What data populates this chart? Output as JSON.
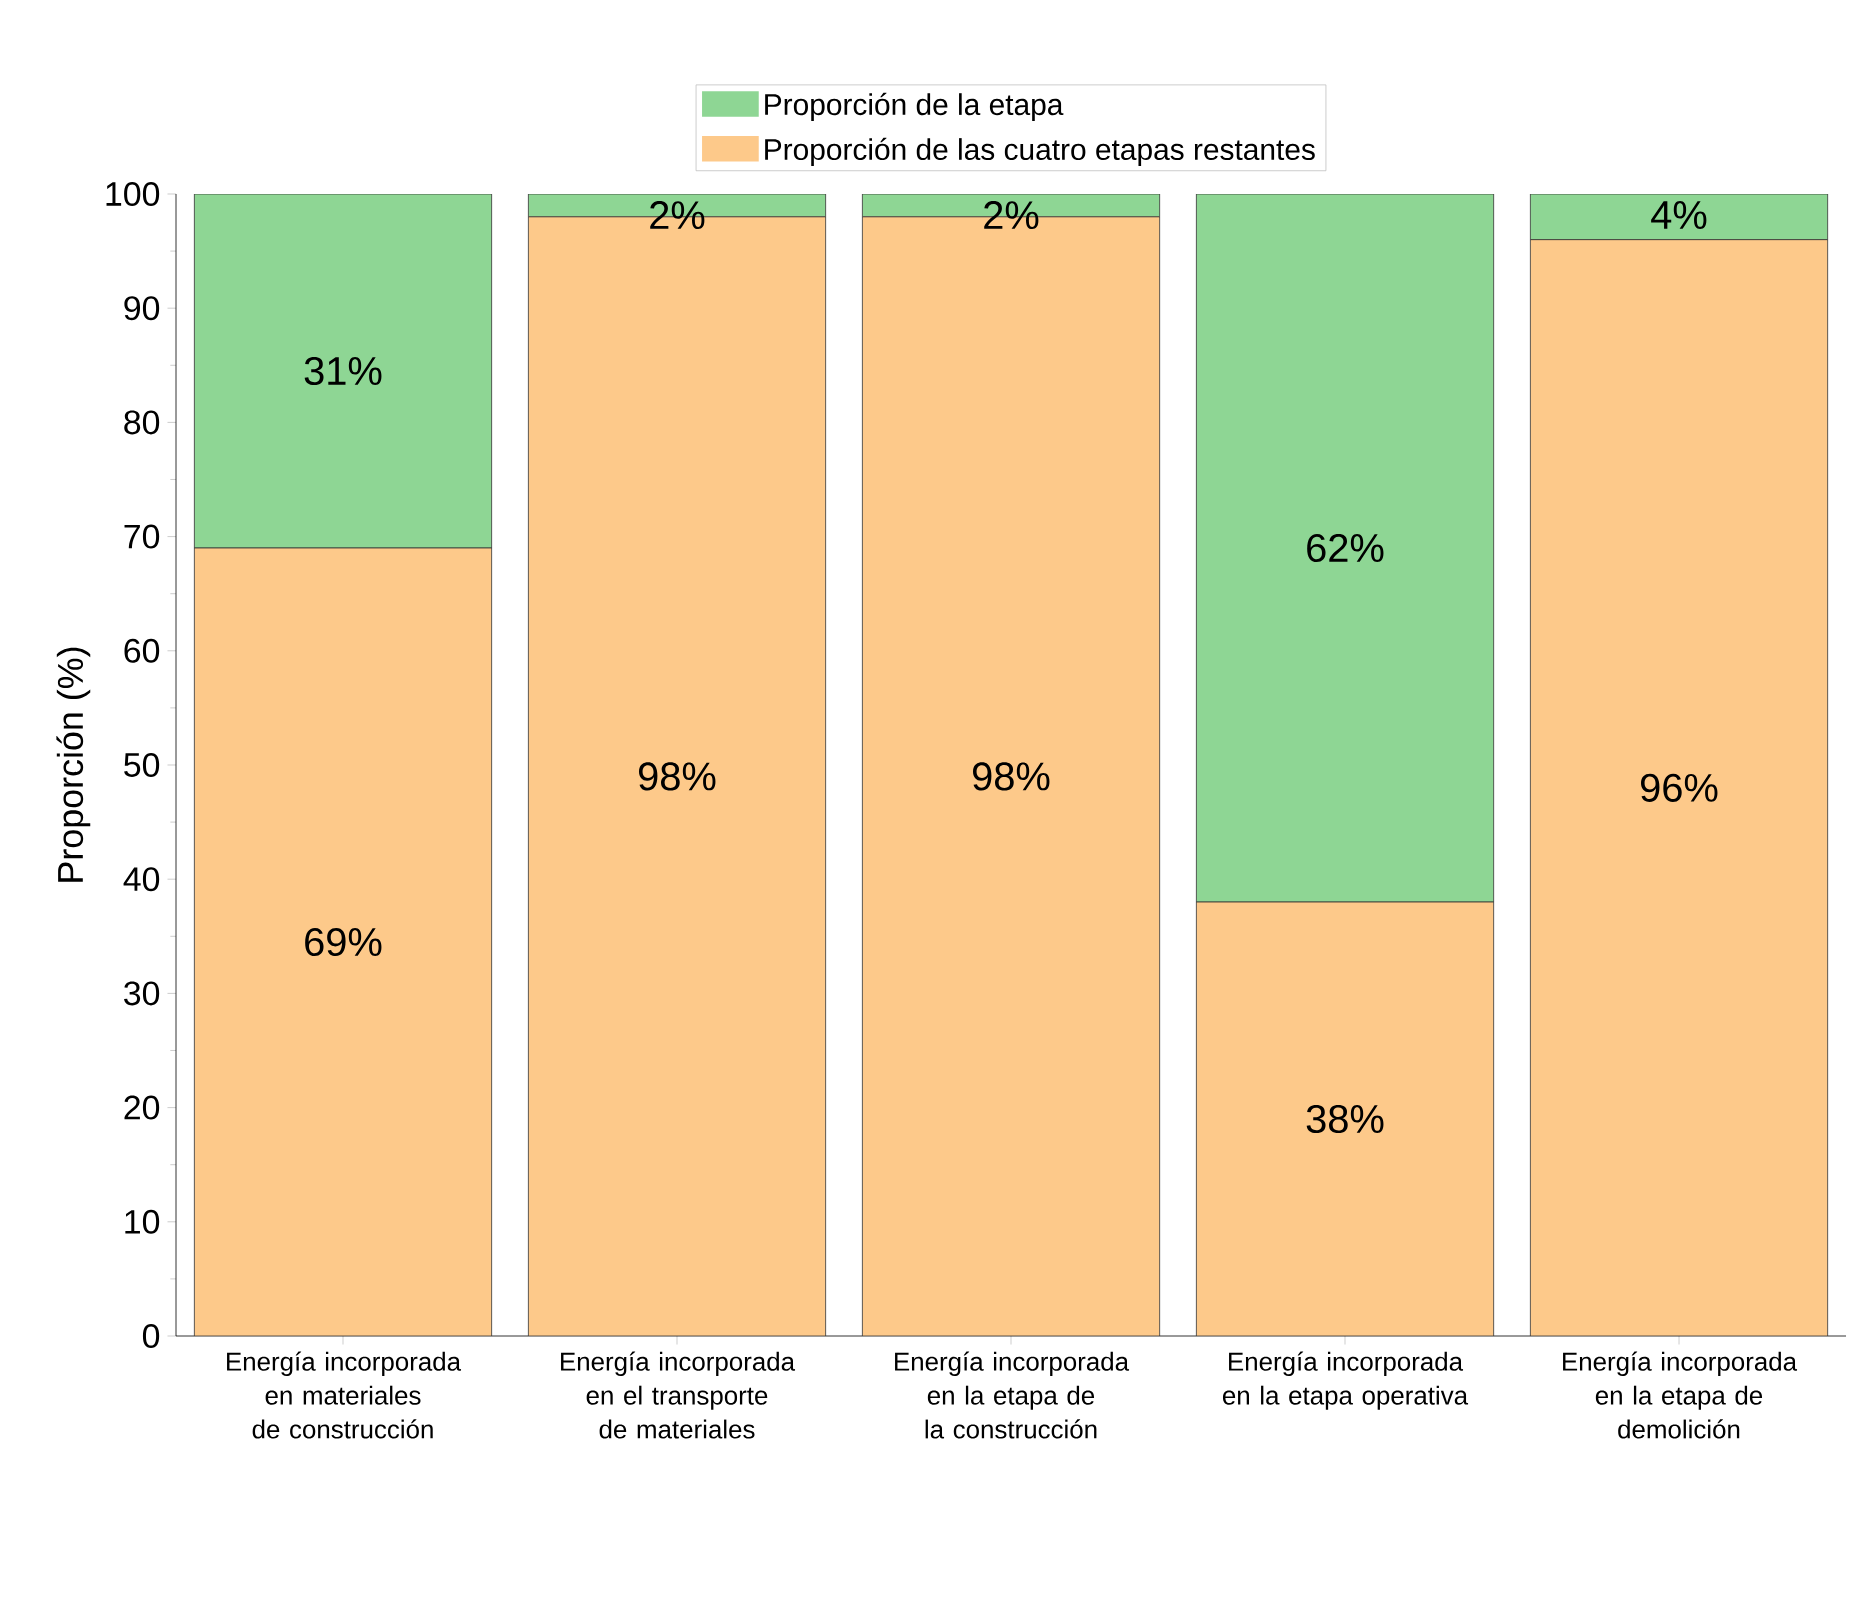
{
  "chart_data": {
    "type": "bar",
    "stacked": true,
    "ylabel": "Proporción (%)",
    "categories": [
      "Energía incorporada en materiales de construcción",
      "Energía incorporada en el transporte de materiales",
      "Energía incorporada en la etapa de la construcción",
      "Energía incorporada en la etapa operativa",
      "Energía incorporada en la etapa de demolición"
    ],
    "series": [
      {
        "name": "Proporción de las cuatro etapas restantes",
        "color": "#fdc98a",
        "values": [
          69,
          98,
          98,
          38,
          96
        ],
        "value_labels": [
          "69%",
          "98%",
          "98%",
          "38%",
          "96%"
        ]
      },
      {
        "name": "Proporción de la etapa",
        "color": "#8ed694",
        "values": [
          31,
          2,
          2,
          62,
          4
        ],
        "value_labels": [
          "31%",
          "2%",
          "2%",
          "62%",
          "4%"
        ]
      }
    ],
    "ylim": [
      0,
      100
    ],
    "yticks": [
      0,
      10,
      20,
      30,
      40,
      50,
      60,
      70,
      80,
      90,
      100
    ],
    "grid": false,
    "legend": "top"
  }
}
